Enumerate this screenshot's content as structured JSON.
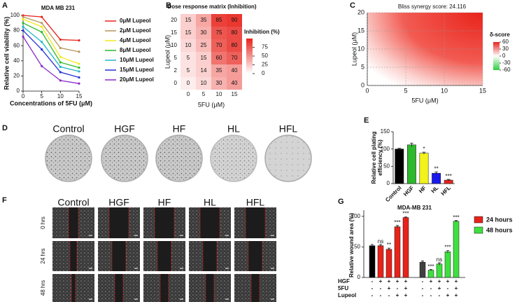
{
  "chart_data": [
    {
      "type": "line",
      "panel": "A",
      "title": "MDA MB 231",
      "xlabel": "Concentrations of 5FU (μM)",
      "ylabel": "Relative cell viability (%)",
      "x": [
        0,
        5,
        10,
        15
      ],
      "xlim": [
        0,
        15
      ],
      "xticks": [
        0,
        5,
        10,
        15
      ],
      "ylim": [
        0,
        100
      ],
      "yticks": [
        0,
        20,
        40,
        60,
        80,
        100
      ],
      "series": [
        {
          "name": "0μM Lupeol",
          "color": "#e8231b",
          "values": [
            100,
            98,
            68,
            67
          ]
        },
        {
          "name": "2μM Lupeol",
          "color": "#b8955a",
          "values": [
            98,
            90,
            57,
            52
          ]
        },
        {
          "name": "4μM Lupeol",
          "color": "#f2e81d",
          "values": [
            95,
            85,
            45,
            36
          ]
        },
        {
          "name": "8μM Lupeol",
          "color": "#2db82d",
          "values": [
            90,
            78,
            38,
            31
          ]
        },
        {
          "name": "10μM Lupeol",
          "color": "#22b5c8",
          "values": [
            85,
            65,
            32,
            26
          ]
        },
        {
          "name": "15μM Lupeol",
          "color": "#2432d6",
          "values": [
            80,
            55,
            25,
            18
          ]
        },
        {
          "name": "20μM Lupeol",
          "color": "#8a2bc8",
          "values": [
            72,
            33,
            14,
            10
          ]
        }
      ]
    },
    {
      "type": "heatmap",
      "panel": "B",
      "title": "Dose response matrix (Inhibition)",
      "xlabel": "5FU (μM)",
      "ylabel": "Lupeol (μM)",
      "x": [
        0,
        5,
        10,
        15
      ],
      "y": [
        20,
        15,
        10,
        5,
        2,
        0
      ],
      "values": [
        [
          15,
          35,
          85,
          90
        ],
        [
          15,
          30,
          75,
          80
        ],
        [
          10,
          25,
          70,
          80
        ],
        [
          5,
          15,
          60,
          70
        ],
        [
          5,
          14,
          35,
          40
        ],
        [
          0,
          10,
          30,
          40
        ]
      ],
      "color": "#e8231b",
      "clim": [
        0,
        100
      ],
      "colorbar_title": "Inhibition (%)",
      "colorbar_ticks": [
        0,
        25,
        50,
        75
      ]
    },
    {
      "type": "contour",
      "panel": "C",
      "title": "Bliss synergy score: 24.116",
      "xlabel": "5FU (μM)",
      "ylabel": "Lupeol (μM)",
      "xlim": [
        0,
        15
      ],
      "ylim": [
        0,
        20
      ],
      "xticks": [
        0,
        5,
        10,
        15
      ],
      "yticks": [
        0,
        5,
        10,
        15,
        20
      ],
      "colorbar_title": "δ-score",
      "clim": [
        -60,
        60
      ],
      "colorbar_ticks": [
        60,
        30,
        0,
        -30,
        -60
      ],
      "colors": [
        "#2ecc40",
        "#ffffff",
        "#e8231b"
      ]
    },
    {
      "type": "bar",
      "panel": "E",
      "ylabel": [
        "Relative cell plating",
        "efficiency (%)"
      ],
      "categories": [
        "Control",
        "HGF",
        "HF",
        "HL",
        "HFL"
      ],
      "values": [
        100,
        112,
        88,
        30,
        10
      ],
      "errors": [
        2,
        5,
        3,
        4,
        2
      ],
      "colors": [
        "#000000",
        "#2db82d",
        "#f2f21d",
        "#1a1aeb",
        "#e8231b"
      ],
      "annotations": [
        null,
        null,
        "*",
        "**",
        "***"
      ],
      "ylim": [
        0,
        150
      ],
      "yticks": [
        0,
        50,
        100,
        150
      ]
    },
    {
      "type": "grouped_bar",
      "panel": "G",
      "title": "MDA-MB 231",
      "ylabel": "Relative wound area (%)",
      "ylim": [
        0,
        110
      ],
      "yticks": [
        0,
        50,
        100
      ],
      "series": [
        {
          "name": "24 hours",
          "color": "#e8231b",
          "colors": [
            "#000000",
            "#e8231b",
            "#e8231b",
            "#e8231b",
            "#e8231b"
          ],
          "values": [
            52,
            52,
            46,
            83,
            98
          ],
          "errors": [
            2,
            2,
            2,
            2,
            1
          ],
          "annotations": [
            null,
            "ns",
            "**",
            "***",
            "***"
          ]
        },
        {
          "name": "48 hours",
          "color": "#3ee03e",
          "colors": [
            "#404040",
            "#3ee03e",
            "#3ee03e",
            "#3ee03e",
            "#3ee03e"
          ],
          "values": [
            25,
            12,
            22,
            42,
            92
          ],
          "errors": [
            2,
            1,
            2,
            2,
            1
          ],
          "annotations": [
            null,
            "***",
            "ns",
            "***",
            "***"
          ]
        }
      ],
      "conditions": [
        {
          "name": "HGF",
          "signs": [
            "-",
            "+",
            "+",
            "+",
            "+"
          ]
        },
        {
          "name": "5FU",
          "signs": [
            "-",
            "-",
            "+",
            "-",
            "+"
          ]
        },
        {
          "name": "Lupeol",
          "signs": [
            "-",
            "-",
            "-",
            "+",
            "+"
          ]
        }
      ]
    }
  ],
  "image_panels": [
    {
      "panel": "D",
      "columns": [
        "Control",
        "HGF",
        "HF",
        "HL",
        "HFL"
      ]
    },
    {
      "panel": "F",
      "columns": [
        "Control",
        "HGF",
        "HF",
        "HL",
        "HFL"
      ],
      "rows": [
        "0 hrs",
        "24 hrs",
        "48 hrs"
      ]
    }
  ]
}
